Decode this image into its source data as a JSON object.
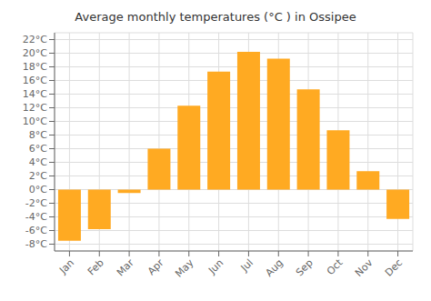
{
  "chart_data": {
    "type": "bar",
    "title": "Average monthly temperatures (°C ) in Ossipee",
    "categories": [
      "Jan",
      "Feb",
      "Mar",
      "Apr",
      "May",
      "Jun",
      "Jul",
      "Aug",
      "Sep",
      "Oct",
      "Nov",
      "Dec"
    ],
    "values": [
      -7.5,
      -5.8,
      -0.5,
      6.0,
      12.3,
      17.3,
      20.2,
      19.2,
      14.7,
      8.7,
      2.7,
      -4.3
    ],
    "color": "#FFAA22",
    "ylim": [
      -9,
      23
    ],
    "yticks": [
      {
        "value": -8,
        "label": "-8°C"
      },
      {
        "value": -6,
        "label": "-6°C"
      },
      {
        "value": -4,
        "label": "-4°C"
      },
      {
        "value": -2,
        "label": "-2°C"
      },
      {
        "value": 0,
        "label": "0°C"
      },
      {
        "value": 2,
        "label": "2°C"
      },
      {
        "value": 4,
        "label": "4°C"
      },
      {
        "value": 6,
        "label": "6°C"
      },
      {
        "value": 8,
        "label": "8°C"
      },
      {
        "value": 10,
        "label": "10°C"
      },
      {
        "value": 12,
        "label": "12°C"
      },
      {
        "value": 14,
        "label": "14°C"
      },
      {
        "value": 16,
        "label": "16°C"
      },
      {
        "value": 18,
        "label": "18°C"
      },
      {
        "value": 20,
        "label": "20°C"
      },
      {
        "value": 22,
        "label": "22°C"
      }
    ],
    "grid": true
  }
}
